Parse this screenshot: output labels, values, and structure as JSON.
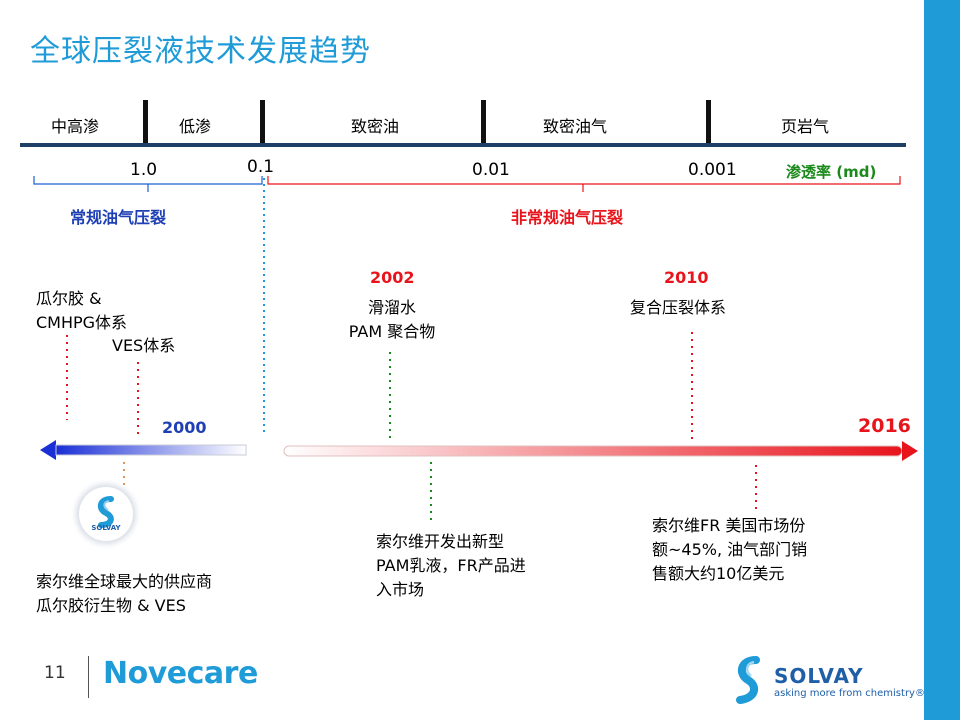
{
  "title": "全球压裂液技术发展趋势",
  "segments": [
    "中高渗",
    "低渗",
    "致密油",
    "致密油气",
    "页岩气"
  ],
  "ticks": [
    "1.0",
    "0.1",
    "0.01",
    "0.001"
  ],
  "permeability_label": "渗透率 (md)",
  "categories": {
    "conventional": "常规油气压裂",
    "unconventional": "非常规油气压裂"
  },
  "colors": {
    "accent": "#1f9bd7",
    "green": "#1b8a1b",
    "blue": "#1f3fb5",
    "red": "#e8141c"
  },
  "upper": {
    "guar_l1": "瓜尔胶 &",
    "guar_l2": "CMHPG体系",
    "ves": "VES体系",
    "y2002": "2002",
    "slick_l1": "滑溜水",
    "slick_l2": "PAM 聚合物",
    "y2010": "2010",
    "composite": "复合压裂体系"
  },
  "timeline": {
    "y2000": "2000",
    "y2016": "2016"
  },
  "lower": {
    "solvay_badge": "SOLVAY",
    "supplier_l1": "索尔维全球最大的供应商",
    "supplier_l2": "瓜尔胶衍生物 & VES",
    "pam_l1": "索尔维开发出新型",
    "pam_l2": "PAM乳液，FR产品进",
    "pam_l3": "入市场",
    "fr_l1": "索尔维FR 美国市场份",
    "fr_l2": "额~45%, 油气部门销",
    "fr_l3": "售额大约10亿美元"
  },
  "footer": {
    "page": "11",
    "brand": "Novecare",
    "logo_word": "SOLVAY",
    "logo_tagline": "asking more from chemistry®"
  }
}
